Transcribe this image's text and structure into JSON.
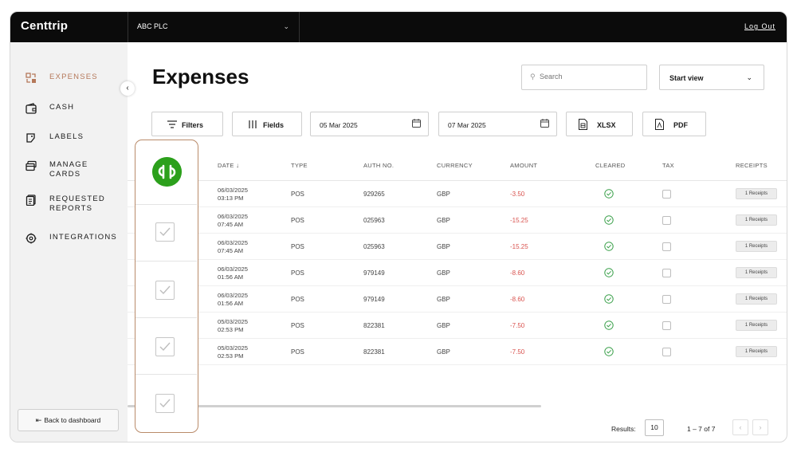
{
  "app": {
    "brand": "Centtrip",
    "company": "ABC PLC",
    "logout": "Log Out"
  },
  "colors": {
    "accent": "#b5785a",
    "negative": "#d9534f",
    "cleared": "#3aa04a",
    "quickbooks": "#2ca01c"
  },
  "sidebar": {
    "items": [
      {
        "label": "EXPENSES",
        "icon": "expenses-icon",
        "active": true
      },
      {
        "label": "CASH",
        "icon": "wallet-icon"
      },
      {
        "label": "LABELS",
        "icon": "label-icon"
      },
      {
        "label": "MANAGE CARDS",
        "line1": "MANAGE",
        "line2": "CARDS",
        "icon": "card-icon"
      },
      {
        "label": "REQUESTED REPORTS",
        "line1": "REQUESTED",
        "line2": "REPORTS",
        "icon": "report-icon"
      },
      {
        "label": "INTEGRATIONS",
        "icon": "integrations-icon"
      }
    ],
    "back_label": "Back to dashboard"
  },
  "page": {
    "title": "Expenses"
  },
  "search": {
    "placeholder": "Search"
  },
  "start_view": {
    "label": "Start view"
  },
  "toolbar": {
    "filters": "Filters",
    "fields": "Fields",
    "date_from": "05 Mar 2025",
    "date_to": "07 Mar 2025",
    "xlsx": "XLSX",
    "pdf": "PDF"
  },
  "table": {
    "headers": {
      "date": "DATE",
      "type": "TYPE",
      "auth": "AUTH NO.",
      "currency": "CURRENCY",
      "amount": "AMOUNT",
      "cleared": "CLEARED",
      "tax": "TAX",
      "receipts": "RECEIPTS"
    },
    "rows": [
      {
        "date": "06/03/2025",
        "time": "03:13 PM",
        "type": "POS",
        "auth": "929265",
        "currency": "GBP",
        "amount": "-3.50",
        "receipts": "1 Receipts"
      },
      {
        "date": "06/03/2025",
        "time": "07:45 AM",
        "type": "POS",
        "auth": "025963",
        "currency": "GBP",
        "amount": "-15.25",
        "receipts": "1 Receipts"
      },
      {
        "date": "06/03/2025",
        "time": "07:45 AM",
        "type": "POS",
        "auth": "025963",
        "currency": "GBP",
        "amount": "-15.25",
        "receipts": "1 Receipts"
      },
      {
        "date": "06/03/2025",
        "time": "01:56 AM",
        "type": "POS",
        "auth": "979149",
        "currency": "GBP",
        "amount": "-8.60",
        "receipts": "1 Receipts"
      },
      {
        "date": "06/03/2025",
        "time": "01:56 AM",
        "type": "POS",
        "auth": "979149",
        "currency": "GBP",
        "amount": "-8.60",
        "receipts": "1 Receipts"
      },
      {
        "date": "05/03/2025",
        "time": "02:53 PM",
        "type": "POS",
        "auth": "822381",
        "currency": "GBP",
        "amount": "-7.50",
        "receipts": "1 Receipts"
      },
      {
        "date": "05/03/2025",
        "time": "02:53 PM",
        "type": "POS",
        "auth": "822381",
        "currency": "GBP",
        "amount": "-7.50",
        "receipts": "1 Receipts"
      }
    ]
  },
  "pagination": {
    "results_label": "Results:",
    "page_size": "10",
    "range": "1 – 7 of 7"
  }
}
